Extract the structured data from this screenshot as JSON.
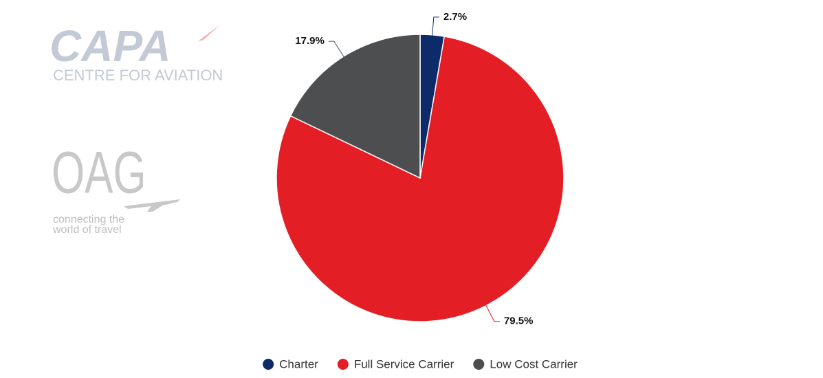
{
  "chart_data": {
    "type": "pie",
    "categories": [
      "Charter",
      "Full Service Carrier",
      "Low Cost Carrier"
    ],
    "values": [
      2.7,
      79.5,
      17.9
    ],
    "value_labels": [
      "2.7%",
      "79.5%",
      "17.9%"
    ],
    "colors": [
      "#0d2a6b",
      "#e31e25",
      "#4d4e50"
    ],
    "legend": "bottom"
  },
  "logos": {
    "capa": {
      "name": "CAPA",
      "tagline": "CENTRE FOR AVIATION"
    },
    "oag": {
      "name": "OAG",
      "tagline": [
        "connecting the",
        "world of travel"
      ]
    }
  }
}
